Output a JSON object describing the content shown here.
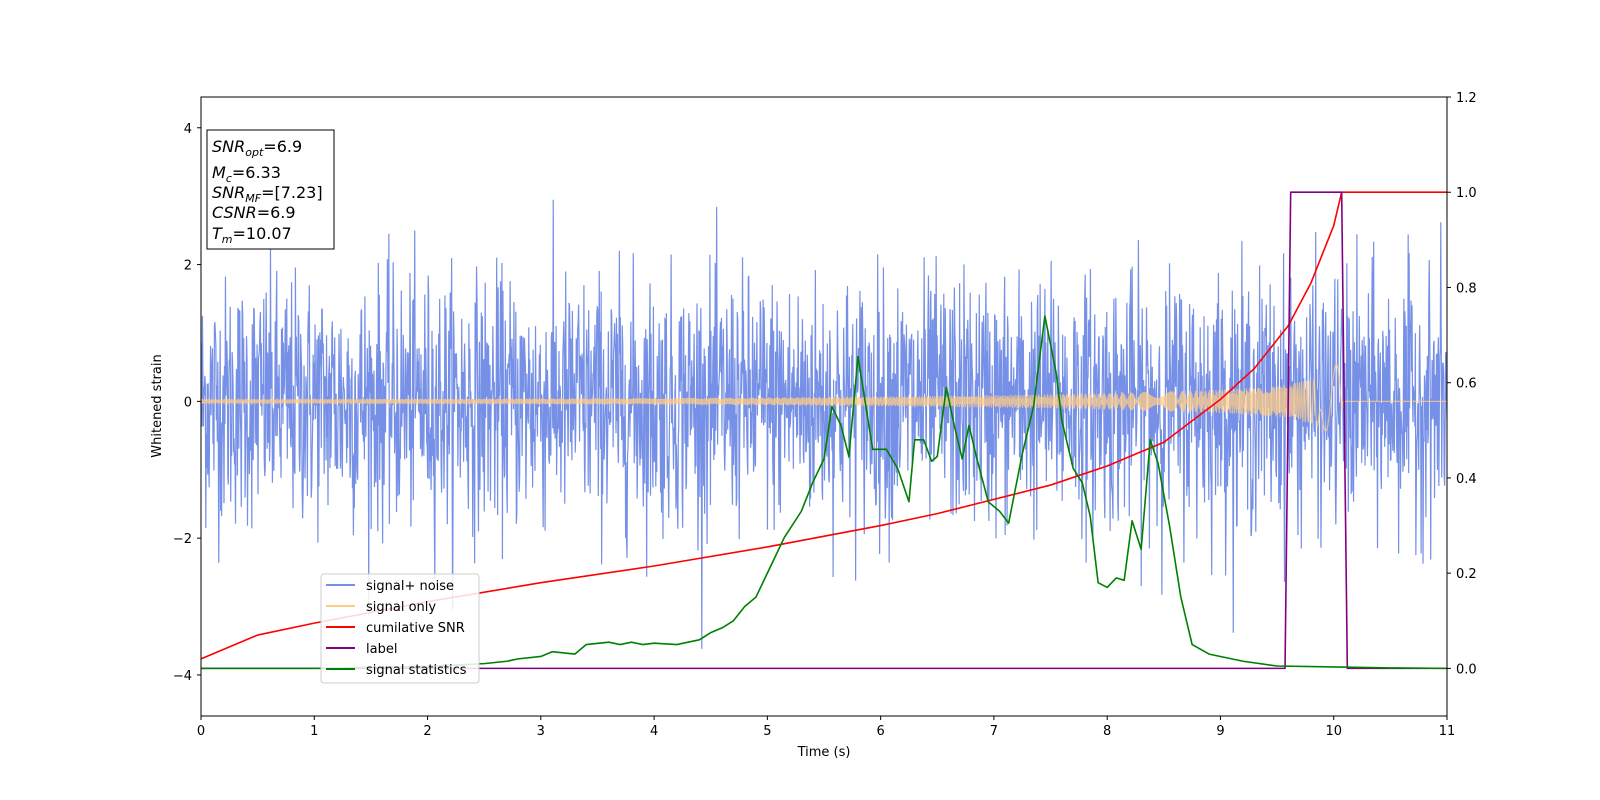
{
  "chart_data": {
    "type": "line",
    "xlabel": "Time (s)",
    "ylabel": "Whitened strain",
    "xlim": [
      0,
      11
    ],
    "ylim_left": [
      -4.6,
      4.45
    ],
    "ylim_right": [
      -0.1,
      1.2
    ],
    "x_ticks": [
      "0",
      "1",
      "2",
      "3",
      "4",
      "5",
      "6",
      "7",
      "8",
      "9",
      "10",
      "11"
    ],
    "y_ticks_left": [
      "4",
      "2",
      "0",
      "−2",
      "−4"
    ],
    "y_ticks_right": [
      "1.2",
      "1.0",
      "0.8",
      "0.6",
      "0.4",
      "0.2",
      "0.0"
    ],
    "legend_position": "lower-left",
    "annotation": {
      "snr_opt": "=6.9",
      "mc": "=6.33",
      "snr_mf": "=[7.23]",
      "csnr": "=6.9",
      "tm": "=10.07"
    },
    "series": [
      {
        "name": "signal+ noise",
        "axis": "left",
        "color": "#7590e6",
        "noise_amplitude_sd": 0.9,
        "range": [
          -4.2,
          4.05
        ]
      },
      {
        "name": "signal only",
        "axis": "left",
        "color": "#ffcc88",
        "envelope": {
          "x": [
            0,
            2,
            4,
            5,
            6,
            7,
            8,
            9,
            9.5,
            9.8,
            10.0,
            10.07,
            10.08,
            11
          ],
          "amp": [
            0.03,
            0.035,
            0.045,
            0.055,
            0.07,
            0.09,
            0.12,
            0.17,
            0.22,
            0.32,
            0.5,
            0.65,
            0,
            0
          ]
        }
      },
      {
        "name": "cumilative SNR",
        "axis": "right",
        "color": "#ff0000",
        "x": [
          0,
          0.5,
          1,
          2,
          3,
          4,
          5,
          6,
          6.5,
          7,
          7.5,
          8,
          8.5,
          9,
          9.3,
          9.6,
          9.8,
          10.0,
          10.07,
          10.08,
          11
        ],
        "values": [
          0.02,
          0.07,
          0.095,
          0.14,
          0.18,
          0.215,
          0.255,
          0.3,
          0.325,
          0.355,
          0.385,
          0.425,
          0.475,
          0.565,
          0.63,
          0.72,
          0.81,
          0.93,
          1.0,
          1.0,
          1.0
        ]
      },
      {
        "name": "label",
        "axis": "right",
        "color": "#800080",
        "x": [
          0,
          9.57,
          9.62,
          10.07,
          10.12,
          11
        ],
        "values": [
          0,
          0,
          1,
          1,
          0,
          0
        ]
      },
      {
        "name": "signal statistics",
        "axis": "right",
        "color": "#008000",
        "x": [
          0,
          0.5,
          1,
          1.5,
          2,
          2.5,
          2.7,
          2.8,
          3,
          3.1,
          3.3,
          3.4,
          3.6,
          3.7,
          3.8,
          3.9,
          4,
          4.2,
          4.4,
          4.5,
          4.6,
          4.7,
          4.8,
          4.9,
          5.0,
          5.05,
          5.15,
          5.3,
          5.4,
          5.5,
          5.57,
          5.65,
          5.72,
          5.8,
          5.85,
          5.93,
          6.05,
          6.15,
          6.25,
          6.3,
          6.38,
          6.45,
          6.5,
          6.58,
          6.65,
          6.72,
          6.78,
          6.85,
          6.95,
          7.05,
          7.13,
          7.25,
          7.35,
          7.45,
          7.55,
          7.6,
          7.7,
          7.78,
          7.85,
          7.92,
          8.0,
          8.08,
          8.15,
          8.22,
          8.3,
          8.38,
          8.45,
          8.55,
          8.65,
          8.75,
          8.9,
          9.2,
          9.5,
          10,
          10.5,
          11
        ],
        "values": [
          0,
          0,
          0,
          0.002,
          0.004,
          0.01,
          0.015,
          0.02,
          0.025,
          0.035,
          0.03,
          0.05,
          0.055,
          0.05,
          0.055,
          0.05,
          0.053,
          0.05,
          0.06,
          0.075,
          0.085,
          0.1,
          0.13,
          0.15,
          0.2,
          0.225,
          0.275,
          0.33,
          0.39,
          0.44,
          0.55,
          0.51,
          0.445,
          0.655,
          0.58,
          0.46,
          0.46,
          0.42,
          0.35,
          0.48,
          0.48,
          0.435,
          0.445,
          0.59,
          0.51,
          0.44,
          0.51,
          0.44,
          0.35,
          0.33,
          0.305,
          0.45,
          0.55,
          0.74,
          0.62,
          0.52,
          0.42,
          0.39,
          0.32,
          0.18,
          0.17,
          0.19,
          0.185,
          0.31,
          0.25,
          0.48,
          0.43,
          0.3,
          0.15,
          0.05,
          0.03,
          0.015,
          0.005,
          0.003,
          0.001,
          0
        ]
      }
    ]
  }
}
